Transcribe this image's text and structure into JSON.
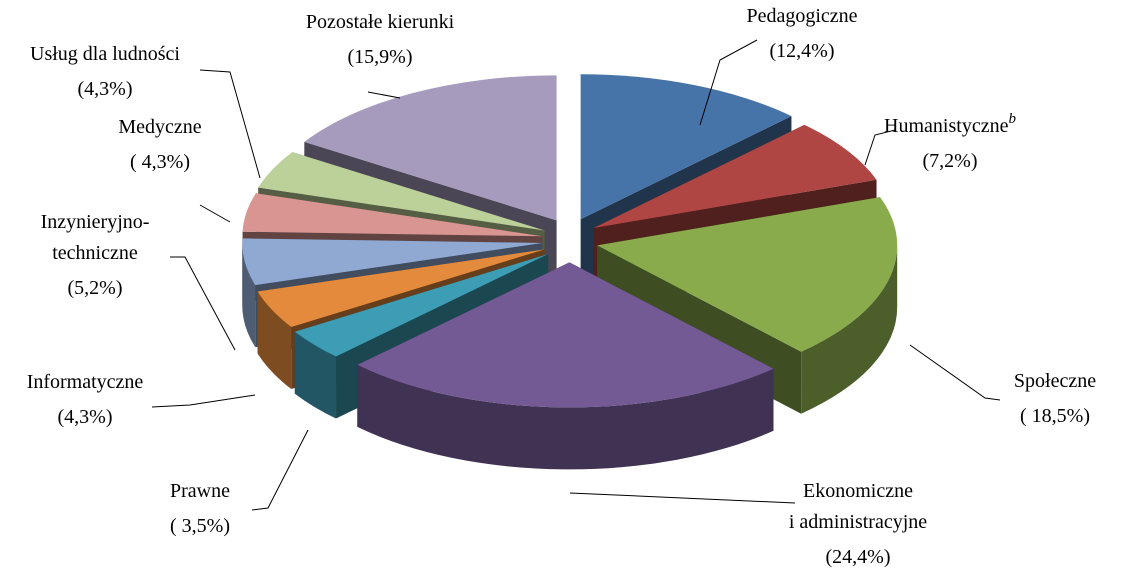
{
  "chart_data": {
    "type": "pie3d",
    "categories": [
      "Pedagogiczne",
      "Humanistyczne",
      "Społeczne",
      "Ekonomiczne\ni administracyjne",
      "Prawne",
      "Informatyczne",
      "Inzynieryjno-\ntechniczne",
      "Medyczne",
      "Usług dla ludności",
      "Pozostałe kierunki"
    ],
    "category_notes": [
      null,
      "b",
      null,
      null,
      null,
      null,
      null,
      null,
      null,
      null
    ],
    "values": [
      12.4,
      7.2,
      18.5,
      24.4,
      3.5,
      4.3,
      5.2,
      4.3,
      4.3,
      15.9
    ],
    "value_labels": [
      "(12,4%)",
      "(7,2%)",
      "( 18,5%)",
      "(24,4%)",
      "( 3,5%)",
      "(4,3%)",
      "(5,2%)",
      "( 4,3%)",
      "(4,3%)",
      "(15,9%)"
    ],
    "colors": [
      "#4674a9",
      "#b04643",
      "#8aab4c",
      "#745a95",
      "#3d9db5",
      "#e38a3c",
      "#90a9d3",
      "#d89592",
      "#bcd09a",
      "#a69bbd"
    ]
  }
}
